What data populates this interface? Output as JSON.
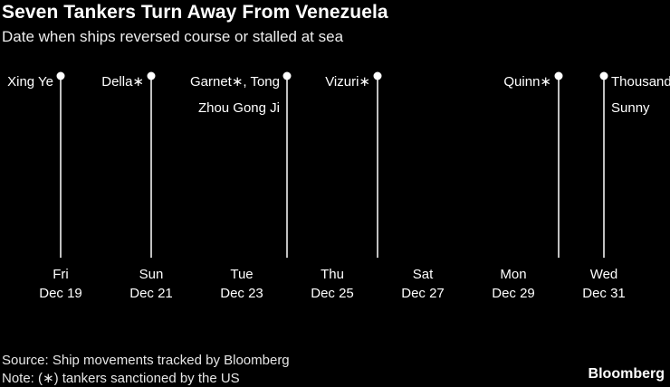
{
  "title": "Seven Tankers Turn Away From Venezuela",
  "subtitle": "Date when ships reversed course or stalled at sea",
  "source": "Source: Ship movements tracked by Bloomberg",
  "note": "Note: (∗) tankers sanctioned by the US",
  "logo": "Bloomberg",
  "colors": {
    "background": "#000000",
    "line": "#ffffff",
    "text": "#ffffff"
  },
  "chart_data": {
    "type": "timeline",
    "title": "Seven Tankers Turn Away From Venezuela",
    "subtitle": "Date when ships reversed course or stalled at sea",
    "x_range": [
      "Dec 19",
      "Dec 31"
    ],
    "ticks": [
      {
        "day": 19,
        "weekday": "Fri",
        "date": "Dec 19"
      },
      {
        "day": 21,
        "weekday": "Sun",
        "date": "Dec 21"
      },
      {
        "day": 23,
        "weekday": "Tue",
        "date": "Dec 23"
      },
      {
        "day": 25,
        "weekday": "Thu",
        "date": "Dec 25"
      },
      {
        "day": 27,
        "weekday": "Sat",
        "date": "Dec 27"
      },
      {
        "day": 29,
        "weekday": "Mon",
        "date": "Dec 29"
      },
      {
        "day": 31,
        "weekday": "Wed",
        "date": "Dec 31"
      }
    ],
    "events": [
      {
        "day": 19,
        "date": "Dec 19",
        "label_lines": [
          "Xing Ye"
        ],
        "label_side": "left",
        "sanctioned": false
      },
      {
        "day": 21,
        "date": "Dec 21",
        "label_lines": [
          "Della∗"
        ],
        "label_side": "left",
        "sanctioned": true
      },
      {
        "day": 24,
        "date": "Dec 24",
        "label_lines": [
          "Garnet∗, Tong",
          "Zhou Gong Ji"
        ],
        "label_side": "left",
        "sanctioned": true
      },
      {
        "day": 26,
        "date": "Dec 26",
        "label_lines": [
          "Vizuri∗"
        ],
        "label_side": "left",
        "sanctioned": true
      },
      {
        "day": 30,
        "date": "Dec 30",
        "label_lines": [
          "Quinn∗"
        ],
        "label_side": "left",
        "sanctioned": true
      },
      {
        "day": 31,
        "date": "Dec 31",
        "label_lines": [
          "Thousand",
          "Sunny"
        ],
        "label_side": "right",
        "sanctioned": false
      }
    ]
  }
}
